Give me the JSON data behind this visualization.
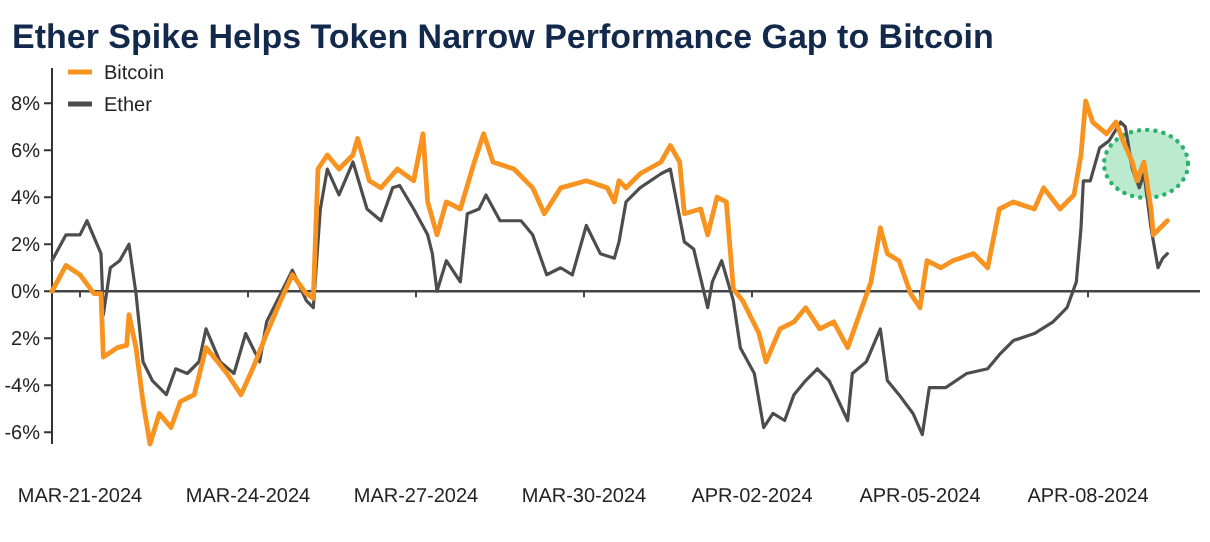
{
  "chart_data": {
    "type": "line",
    "title": "Ether Spike Helps Token Narrow Performance Gap to Bitcoin",
    "xlim": [
      "2024-03-20T12:00",
      "2024-04-10T00:00"
    ],
    "xticks": [
      {
        "value": "2024-03-21",
        "label": "MAR-21-2024"
      },
      {
        "value": "2024-03-24",
        "label": "MAR-24-2024"
      },
      {
        "value": "2024-03-27",
        "label": "MAR-27-2024"
      },
      {
        "value": "2024-03-30",
        "label": "MAR-30-2024"
      },
      {
        "value": "2024-04-02",
        "label": "APR-02-2024"
      },
      {
        "value": "2024-04-05",
        "label": "APR-05-2024"
      },
      {
        "value": "2024-04-08",
        "label": "APR-08-2024"
      }
    ],
    "ylim": [
      -6.5,
      9.5
    ],
    "yticks": [
      {
        "value": -6,
        "label": "-6%"
      },
      {
        "value": -4,
        "label": "-4%"
      },
      {
        "value": -2,
        "label": "2%"
      },
      {
        "value": 0,
        "label": "0%"
      },
      {
        "value": 2,
        "label": "2%"
      },
      {
        "value": 4,
        "label": "4%"
      },
      {
        "value": 6,
        "label": "6%"
      },
      {
        "value": 8,
        "label": "8%"
      }
    ],
    "legend": "top left",
    "line_style": "solid",
    "marker": "none",
    "series": [
      {
        "name": "Bitcoin",
        "color": "#f7931e",
        "x": [
          "2024-03-20T12:00",
          "2024-03-20T18:00",
          "2024-03-21T00:00",
          "2024-03-21T06:00",
          "2024-03-21T09:00",
          "2024-03-21T10:00",
          "2024-03-21T16:00",
          "2024-03-21T20:00",
          "2024-03-21T21:00",
          "2024-03-22T00:00",
          "2024-03-22T03:00",
          "2024-03-22T06:00",
          "2024-03-22T10:00",
          "2024-03-22T15:00",
          "2024-03-22T19:00",
          "2024-03-23T01:00",
          "2024-03-23T06:00",
          "2024-03-23T11:00",
          "2024-03-23T15:00",
          "2024-03-23T21:00",
          "2024-03-24T02:00",
          "2024-03-24T08:00",
          "2024-03-24T14:00",
          "2024-03-24T19:00",
          "2024-03-25T01:00",
          "2024-03-25T04:00",
          "2024-03-25T06:00",
          "2024-03-25T10:00",
          "2024-03-25T15:00",
          "2024-03-25T21:00",
          "2024-03-25T23:00",
          "2024-03-26T01:00",
          "2024-03-26T04:00",
          "2024-03-26T09:00",
          "2024-03-26T16:00",
          "2024-03-26T23:00",
          "2024-03-27T03:00",
          "2024-03-27T05:00",
          "2024-03-27T09:00",
          "2024-03-27T13:00",
          "2024-03-27T19:00",
          "2024-03-28T01:00",
          "2024-03-28T05:00",
          "2024-03-28T09:00",
          "2024-03-28T18:00",
          "2024-03-29T02:00",
          "2024-03-29T07:00",
          "2024-03-29T14:00",
          "2024-03-30T01:00",
          "2024-03-30T10:00",
          "2024-03-30T13:00",
          "2024-03-30T15:00",
          "2024-03-30T18:00",
          "2024-03-31T00:00",
          "2024-03-31T09:00",
          "2024-03-31T13:00",
          "2024-03-31T17:00",
          "2024-03-31T19:00",
          "2024-04-01T02:00",
          "2024-04-01T05:00",
          "2024-04-01T09:00",
          "2024-04-01T13:00",
          "2024-04-01T16:00",
          "2024-04-01T20:00",
          "2024-04-02T03:00",
          "2024-04-02T06:00",
          "2024-04-02T12:00",
          "2024-04-02T18:00",
          "2024-04-02T23:00",
          "2024-04-03T05:00",
          "2024-04-03T11:00",
          "2024-04-03T17:00",
          "2024-04-03T22:00",
          "2024-04-04T03:00",
          "2024-04-04T07:00",
          "2024-04-04T10:00",
          "2024-04-04T15:00",
          "2024-04-04T20:00",
          "2024-04-05T00:00",
          "2024-04-05T03:00",
          "2024-04-05T09:00",
          "2024-04-05T14:00",
          "2024-04-05T23:00",
          "2024-04-06T05:00",
          "2024-04-06T10:00",
          "2024-04-06T16:00",
          "2024-04-07T01:00",
          "2024-04-07T05:00",
          "2024-04-07T12:00",
          "2024-04-07T18:00",
          "2024-04-07T21:00",
          "2024-04-07T23:00",
          "2024-04-08T02:00",
          "2024-04-08T08:00",
          "2024-04-08T12:00",
          "2024-04-08T15:00",
          "2024-04-08T19:00",
          "2024-04-08T21:00",
          "2024-04-09T00:00",
          "2024-04-09T03:00",
          "2024-04-09T04:00",
          "2024-04-09T07:00",
          "2024-04-09T10:00"
        ],
        "values": [
          0,
          1.1,
          0.7,
          -0.1,
          -0.1,
          -2.8,
          -2.4,
          -2.3,
          -1.0,
          -2.4,
          -4.7,
          -6.5,
          -5.2,
          -5.8,
          -4.7,
          -4.4,
          -2.4,
          -3.0,
          -3.5,
          -4.4,
          -3.3,
          -1.8,
          -0.4,
          0.7,
          -0.1,
          -0.3,
          5.2,
          5.8,
          5.2,
          5.8,
          6.5,
          5.8,
          4.7,
          4.4,
          5.2,
          4.7,
          6.7,
          3.8,
          2.4,
          3.8,
          3.5,
          5.5,
          6.7,
          5.5,
          5.2,
          4.4,
          3.3,
          4.4,
          4.7,
          4.4,
          3.8,
          4.7,
          4.4,
          5.0,
          5.5,
          6.2,
          5.5,
          3.3,
          3.5,
          2.4,
          4.0,
          3.8,
          0.1,
          -0.4,
          -1.8,
          -3.0,
          -1.6,
          -1.3,
          -0.7,
          -1.6,
          -1.3,
          -2.4,
          -1.0,
          0.4,
          2.7,
          1.6,
          1.3,
          -0.1,
          -0.7,
          1.3,
          1.0,
          1.3,
          1.6,
          1.0,
          3.5,
          3.8,
          3.5,
          4.4,
          3.5,
          4.1,
          5.8,
          8.1,
          7.2,
          6.7,
          7.2,
          6.4,
          5.5,
          4.7,
          5.5,
          3.5,
          2.4,
          2.7,
          3.0
        ]
      },
      {
        "name": "Ether",
        "color": "#4d4d4d",
        "x": [
          "2024-03-20T12:00",
          "2024-03-20T18:00",
          "2024-03-21T00:00",
          "2024-03-21T03:00",
          "2024-03-21T09:00",
          "2024-03-21T10:00",
          "2024-03-21T13:00",
          "2024-03-21T17:00",
          "2024-03-21T21:00",
          "2024-03-22T00:00",
          "2024-03-22T03:00",
          "2024-03-22T07:00",
          "2024-03-22T13:00",
          "2024-03-22T17:00",
          "2024-03-22T22:00",
          "2024-03-23T03:00",
          "2024-03-23T06:00",
          "2024-03-23T12:00",
          "2024-03-23T18:00",
          "2024-03-23T23:00",
          "2024-03-24T05:00",
          "2024-03-24T08:00",
          "2024-03-24T14:00",
          "2024-03-24T19:00",
          "2024-03-25T01:00",
          "2024-03-25T04:00",
          "2024-03-25T07:00",
          "2024-03-25T10:00",
          "2024-03-25T15:00",
          "2024-03-25T21:00",
          "2024-03-26T03:00",
          "2024-03-26T09:00",
          "2024-03-26T14:00",
          "2024-03-26T17:00",
          "2024-03-26T23:00",
          "2024-03-27T05:00",
          "2024-03-27T07:00",
          "2024-03-27T09:00",
          "2024-03-27T13:00",
          "2024-03-27T19:00",
          "2024-03-27T22:00",
          "2024-03-28T03:00",
          "2024-03-28T06:00",
          "2024-03-28T12:00",
          "2024-03-28T21:00",
          "2024-03-29T02:00",
          "2024-03-29T08:00",
          "2024-03-29T14:00",
          "2024-03-29T19:00",
          "2024-03-30T01:00",
          "2024-03-30T07:00",
          "2024-03-30T13:00",
          "2024-03-30T15:00",
          "2024-03-30T18:00",
          "2024-03-31T00:00",
          "2024-03-31T09:00",
          "2024-03-31T13:00",
          "2024-03-31T19:00",
          "2024-03-31T23:00",
          "2024-04-01T05:00",
          "2024-04-01T07:00",
          "2024-04-01T11:00",
          "2024-04-01T16:00",
          "2024-04-01T19:00",
          "2024-04-02T01:00",
          "2024-04-02T05:00",
          "2024-04-02T09:00",
          "2024-04-02T14:00",
          "2024-04-02T18:00",
          "2024-04-02T23:00",
          "2024-04-03T04:00",
          "2024-04-03T09:00",
          "2024-04-03T17:00",
          "2024-04-03T19:00",
          "2024-04-04T01:00",
          "2024-04-04T07:00",
          "2024-04-04T10:00",
          "2024-04-04T15:00",
          "2024-04-04T21:00",
          "2024-04-05T01:00",
          "2024-04-05T04:00",
          "2024-04-05T11:00",
          "2024-04-05T20:00",
          "2024-04-06T05:00",
          "2024-04-06T10:00",
          "2024-04-06T16:00",
          "2024-04-07T01:00",
          "2024-04-07T09:00",
          "2024-04-07T15:00",
          "2024-04-07T19:00",
          "2024-04-07T21:00",
          "2024-04-07T22:00",
          "2024-04-08T01:00",
          "2024-04-08T05:00",
          "2024-04-08T09:00",
          "2024-04-08T14:00",
          "2024-04-08T16:00",
          "2024-04-08T19:00",
          "2024-04-08T22:00",
          "2024-04-09T00:00",
          "2024-04-09T03:00",
          "2024-04-09T06:00",
          "2024-04-09T08:00",
          "2024-04-09T10:00"
        ],
        "values": [
          1.3,
          2.4,
          2.4,
          3.0,
          1.6,
          -1.0,
          1.0,
          1.3,
          2.0,
          -0.1,
          -3.0,
          -3.8,
          -4.4,
          -3.3,
          -3.5,
          -3.0,
          -1.6,
          -3.0,
          -3.5,
          -1.8,
          -3.0,
          -1.3,
          -0.1,
          0.9,
          -0.4,
          -0.7,
          3.5,
          5.2,
          4.1,
          5.5,
          3.5,
          3.0,
          4.4,
          4.5,
          3.5,
          2.4,
          1.6,
          0,
          1.3,
          0.4,
          3.3,
          3.5,
          4.1,
          3.0,
          3.0,
          2.4,
          0.7,
          1.0,
          0.7,
          2.8,
          1.6,
          1.4,
          2.1,
          3.8,
          4.4,
          5.0,
          5.2,
          2.1,
          1.8,
          -0.7,
          0.4,
          1.3,
          -0.4,
          -2.4,
          -3.5,
          -5.8,
          -5.2,
          -5.5,
          -4.4,
          -3.8,
          -3.3,
          -3.8,
          -5.5,
          -3.5,
          -3.0,
          -1.6,
          -3.8,
          -4.4,
          -5.2,
          -6.1,
          -4.1,
          -4.1,
          -3.5,
          -3.3,
          -2.7,
          -2.1,
          -1.8,
          -1.3,
          -0.7,
          0.4,
          2.7,
          4.7,
          4.7,
          6.1,
          6.4,
          7.2,
          7.0,
          5.2,
          4.4,
          5.0,
          2.7,
          1.0,
          1.4,
          1.6
        ]
      }
    ]
  }
}
